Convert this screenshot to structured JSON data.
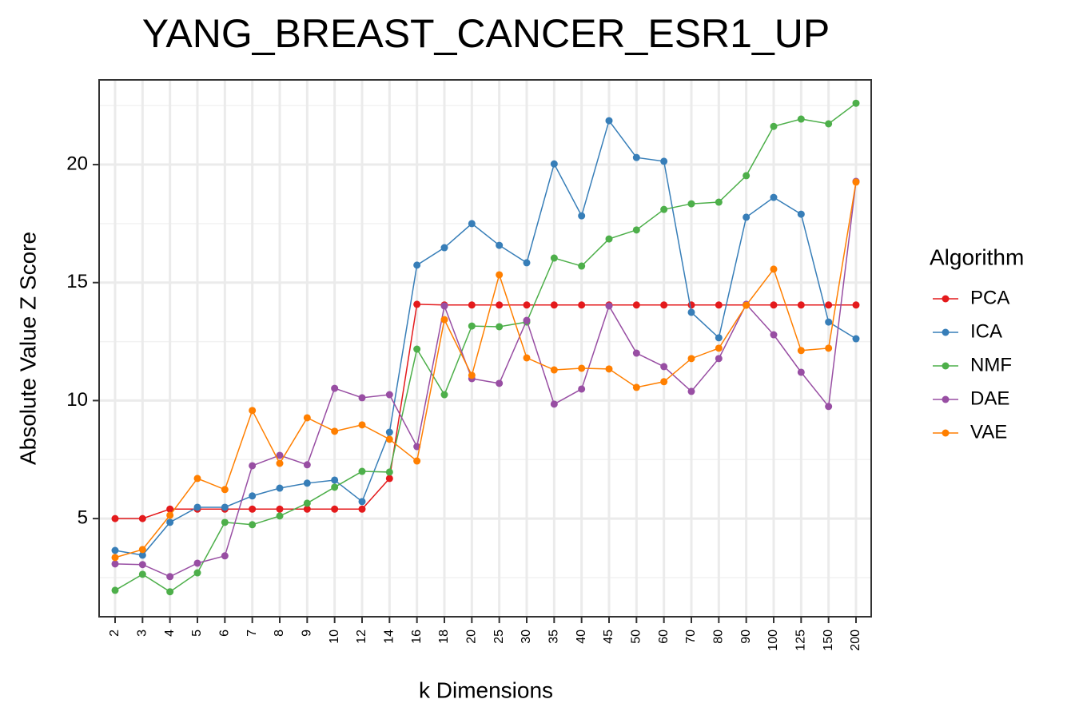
{
  "chart_data": {
    "type": "line",
    "title": "YANG_BREAST_CANCER_ESR1_UP",
    "x_label": "k Dimensions",
    "y_label": "Absolute Value Z Score",
    "legend_title": "Algorithm",
    "categories": [
      "2",
      "3",
      "4",
      "5",
      "6",
      "7",
      "8",
      "9",
      "10",
      "12",
      "14",
      "16",
      "18",
      "20",
      "25",
      "30",
      "35",
      "40",
      "45",
      "50",
      "60",
      "70",
      "80",
      "90",
      "100",
      "125",
      "150",
      "200"
    ],
    "ylim": [
      0.84,
      23.59
    ],
    "yticks": [
      5,
      10,
      15,
      20
    ],
    "yminor_ticks": [
      2.5,
      7.5,
      12.5,
      17.5,
      22.5
    ],
    "grid": true,
    "legend_position": "right",
    "series": [
      {
        "name": "PCA",
        "color": "#e41a1c",
        "values": [
          5.0,
          5.0,
          5.4,
          5.4,
          5.4,
          5.4,
          5.4,
          5.4,
          5.4,
          5.4,
          6.7,
          14.08,
          14.05,
          14.05,
          14.05,
          14.05,
          14.05,
          14.05,
          14.05,
          14.05,
          14.05,
          14.05,
          14.05,
          14.05,
          14.05,
          14.05,
          14.05,
          14.05
        ]
      },
      {
        "name": "ICA",
        "color": "#377eb8",
        "values": [
          3.65,
          3.45,
          4.84,
          5.48,
          5.48,
          5.96,
          6.29,
          6.5,
          6.63,
          5.72,
          8.66,
          15.74,
          16.48,
          17.5,
          16.58,
          15.84,
          20.03,
          17.83,
          21.86,
          20.3,
          20.14,
          13.74,
          12.66,
          17.77,
          18.61,
          17.9,
          13.33,
          12.62
        ]
      },
      {
        "name": "NMF",
        "color": "#4daf4a",
        "values": [
          1.96,
          2.64,
          1.9,
          2.7,
          4.84,
          4.74,
          5.11,
          5.65,
          6.33,
          7.0,
          6.97,
          12.18,
          10.25,
          13.16,
          13.13,
          13.33,
          16.04,
          15.7,
          16.85,
          17.23,
          18.1,
          18.34,
          18.41,
          19.53,
          21.62,
          21.93,
          21.73,
          22.6
        ]
      },
      {
        "name": "DAE",
        "color": "#984ea3",
        "values": [
          3.08,
          3.05,
          2.54,
          3.11,
          3.42,
          7.24,
          7.68,
          7.28,
          10.52,
          10.12,
          10.25,
          8.05,
          14.01,
          10.93,
          10.73,
          13.4,
          9.85,
          10.49,
          14.01,
          12.01,
          11.44,
          10.39,
          11.78,
          14.08,
          12.79,
          11.2,
          9.75,
          19.29
        ]
      },
      {
        "name": "VAE",
        "color": "#ff7f00",
        "values": [
          3.35,
          3.69,
          5.14,
          6.7,
          6.23,
          9.58,
          7.34,
          9.27,
          8.7,
          8.97,
          8.36,
          7.44,
          13.43,
          11.07,
          15.33,
          11.81,
          11.3,
          11.37,
          11.34,
          10.56,
          10.8,
          11.78,
          12.22,
          14.04,
          15.57,
          12.12,
          12.22,
          19.26
        ]
      }
    ]
  }
}
